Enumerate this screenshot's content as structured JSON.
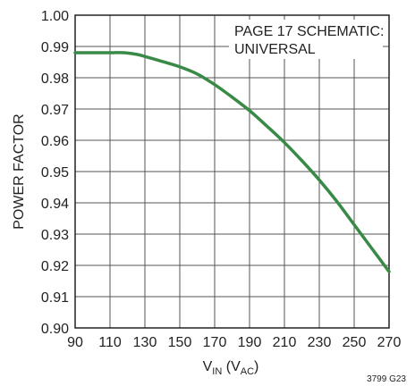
{
  "chart_data": {
    "type": "line",
    "title": "",
    "xlabel": {
      "main": "V",
      "sub1": "IN",
      "mid": " (V",
      "sub2": "AC",
      "end": ")"
    },
    "ylabel": "POWER FACTOR",
    "xlim": [
      90,
      270
    ],
    "ylim": [
      0.9,
      1.0
    ],
    "xticks": [
      "90",
      "110",
      "130",
      "150",
      "170",
      "190",
      "210",
      "230",
      "250",
      "270"
    ],
    "yticks": [
      "0.90",
      "0.91",
      "0.92",
      "0.93",
      "0.94",
      "0.95",
      "0.96",
      "0.97",
      "0.98",
      "0.99",
      "1.00"
    ],
    "grid": true,
    "annotation": [
      "PAGE 17 SCHEMATIC:",
      "UNIVERSAL"
    ],
    "figure_id": "3799 G23",
    "series": [
      {
        "color": "#3a8a47",
        "x": [
          90,
          100,
          110,
          118,
          125,
          130,
          140,
          150,
          160,
          170,
          180,
          190,
          200,
          210,
          220,
          230,
          240,
          250,
          260,
          270
        ],
        "y": [
          0.988,
          0.988,
          0.988,
          0.988,
          0.9875,
          0.9868,
          0.9852,
          0.9835,
          0.9812,
          0.9778,
          0.9738,
          0.9695,
          0.9645,
          0.9593,
          0.9535,
          0.9473,
          0.9405,
          0.933,
          0.9255,
          0.918
        ]
      }
    ]
  }
}
